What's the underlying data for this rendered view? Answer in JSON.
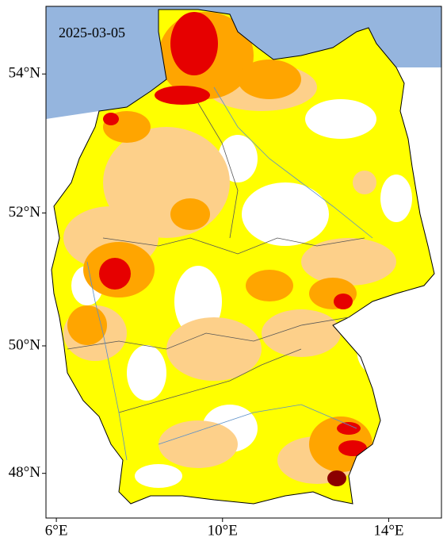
{
  "map": {
    "date_label": "2025-03-05",
    "xlim": [
      5.75,
      15.27
    ],
    "ylim": [
      47.28,
      54.94
    ],
    "xticks": [
      {
        "value": 6,
        "label": "6°E"
      },
      {
        "value": 10,
        "label": "10°E"
      },
      {
        "value": 14,
        "label": "14°E"
      }
    ],
    "yticks": [
      {
        "value": 48,
        "label": "48°N"
      },
      {
        "value": 50,
        "label": "50°N"
      },
      {
        "value": 52,
        "label": "52°N"
      },
      {
        "value": 54,
        "label": "54°N"
      }
    ]
  }
}
